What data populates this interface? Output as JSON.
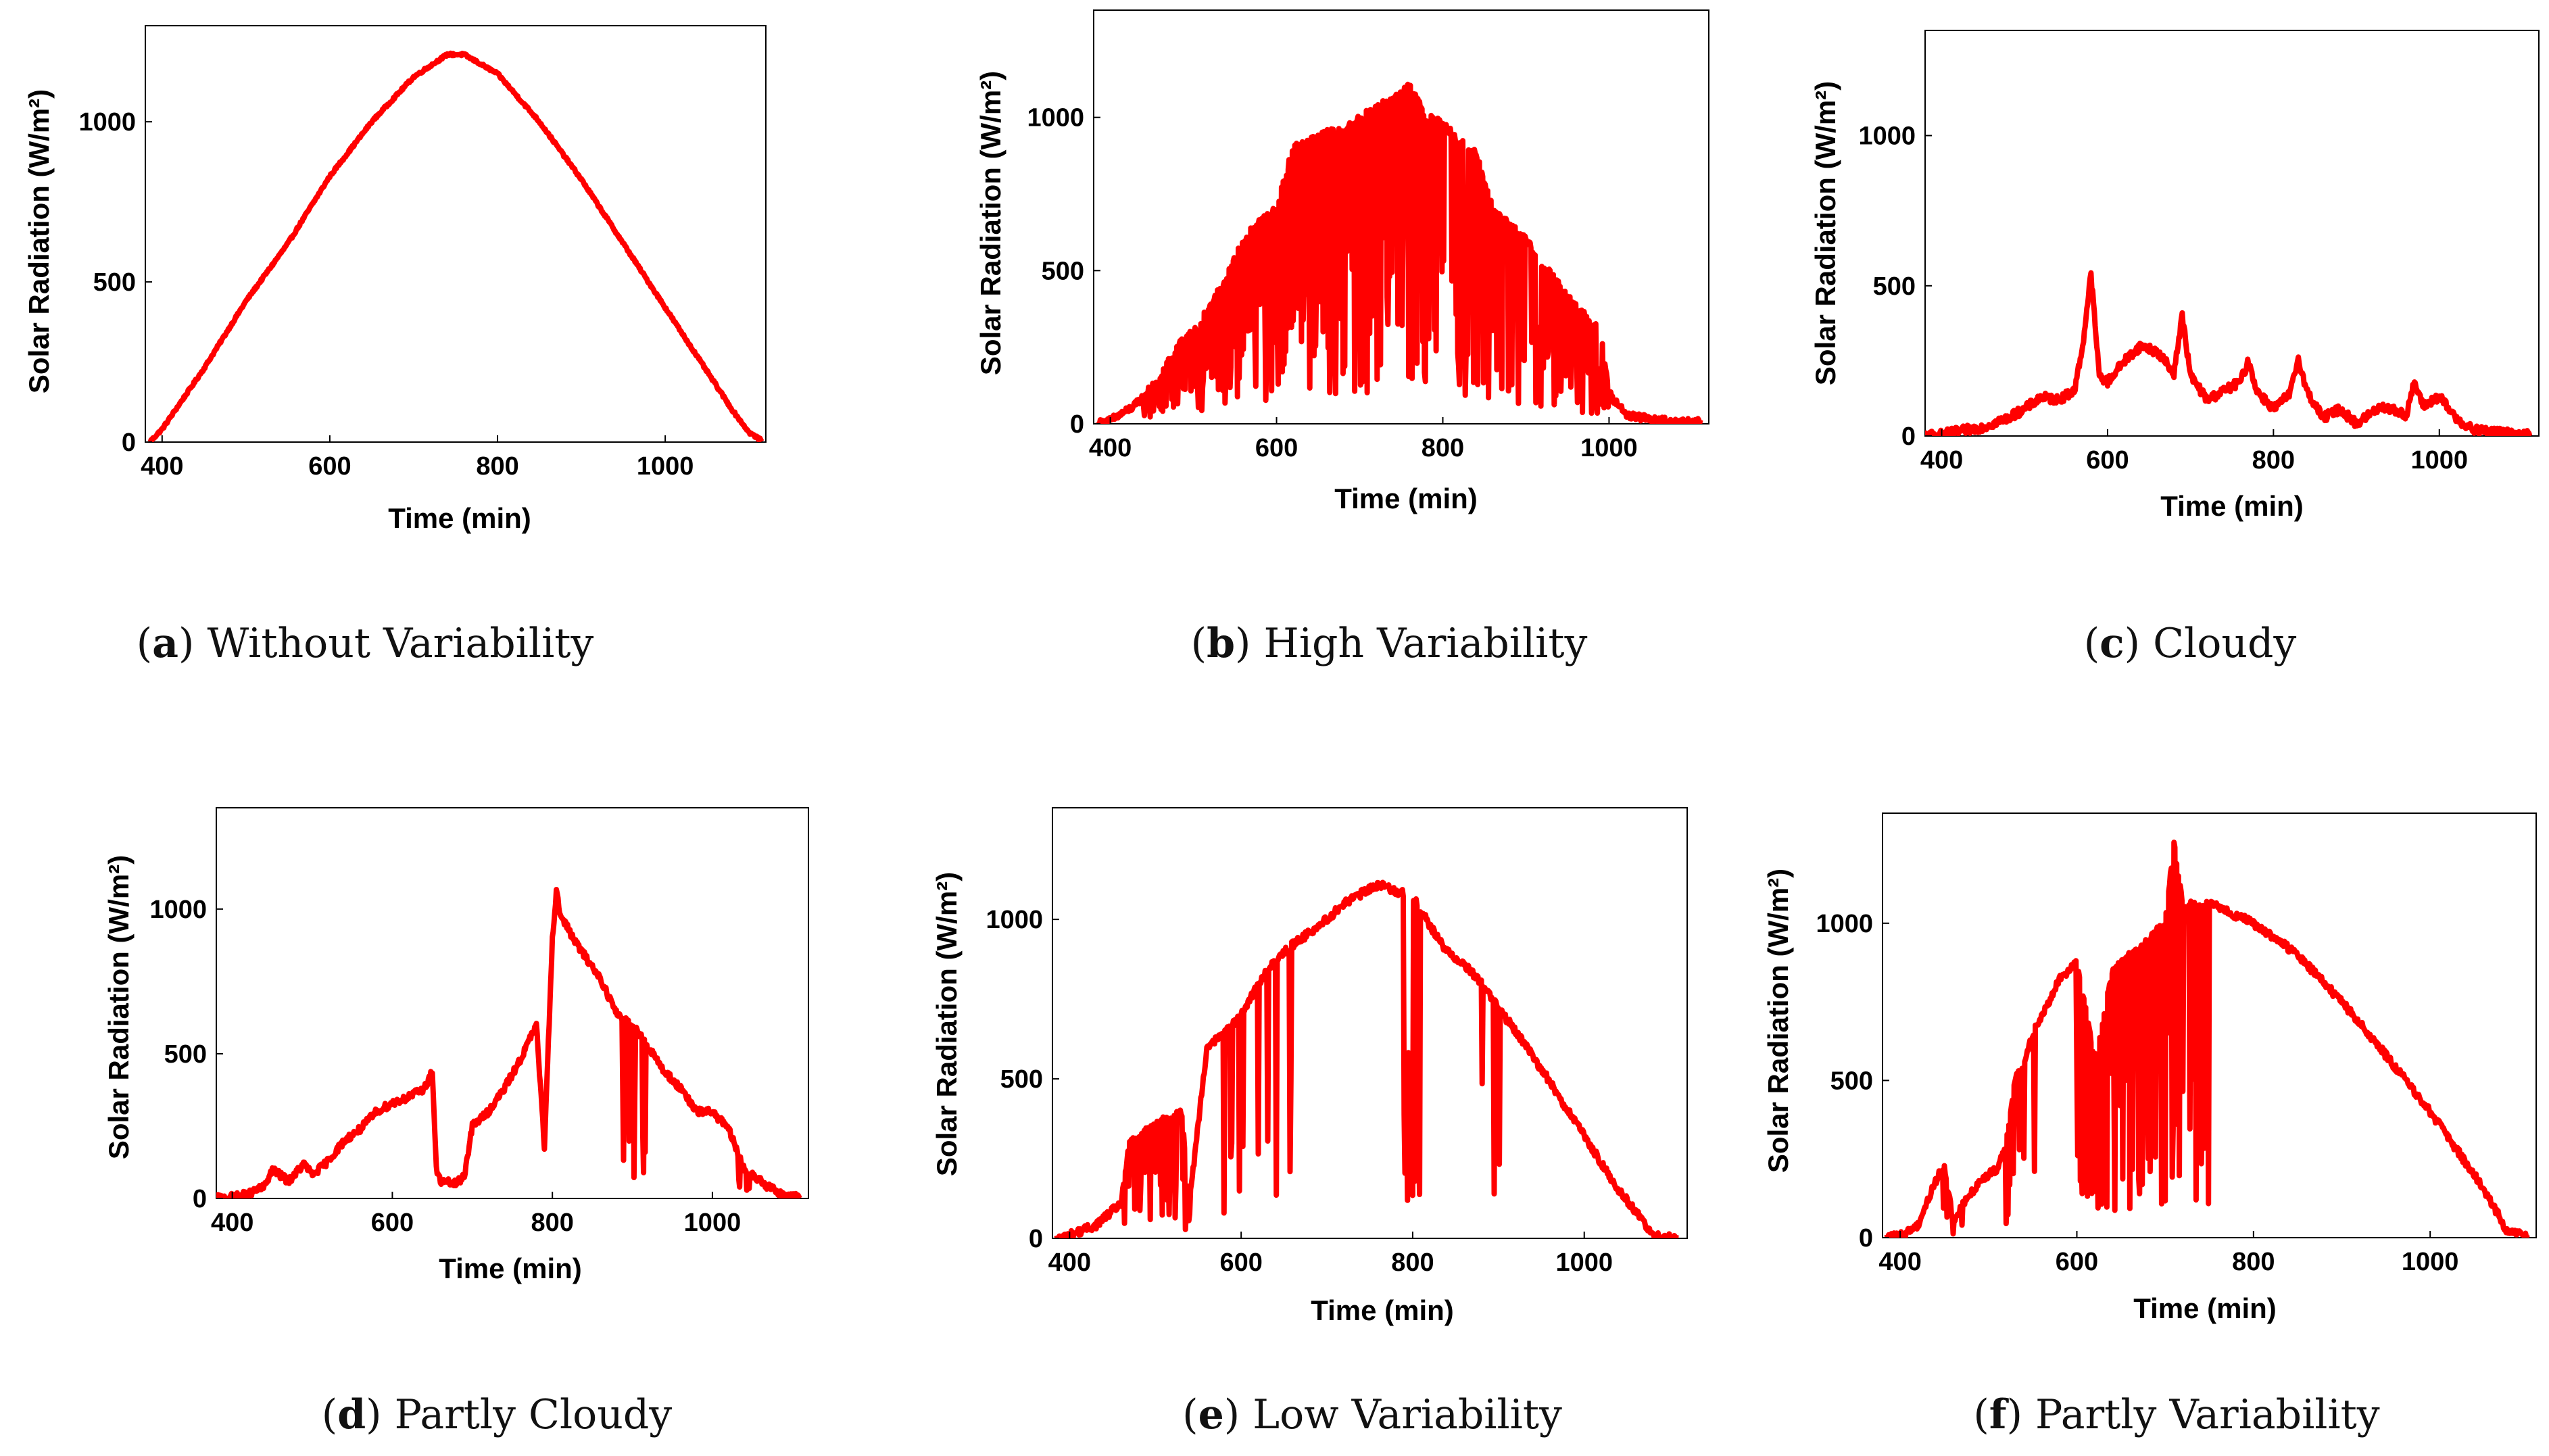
{
  "chart_data": [
    {
      "panel": "a",
      "caption": "Without Variability",
      "type": "line",
      "profile": "none",
      "xlabel": "Time (min)",
      "ylabel": "Solar Radiation (W/m²)",
      "xlim": [
        380,
        1120
      ],
      "ylim": [
        0,
        1300
      ],
      "xticks": [
        400,
        600,
        800,
        1000
      ],
      "yticks": [
        0,
        500,
        1000
      ],
      "series": [
        {
          "name": "Solar Radiation",
          "color": "#ff0000",
          "x": [
            385,
            400,
            450,
            500,
            550,
            600,
            650,
            700,
            740,
            760,
            800,
            850,
            900,
            950,
            1000,
            1050,
            1080,
            1100,
            1115
          ],
          "y": [
            0,
            40,
            230,
            440,
            620,
            830,
            1000,
            1140,
            1210,
            1210,
            1150,
            1000,
            820,
            620,
            420,
            220,
            100,
            30,
            5
          ]
        }
      ]
    },
    {
      "panel": "b",
      "caption": "High Variability",
      "type": "line",
      "profile": "high",
      "xlabel": "Time (min)",
      "ylabel": "Solar Radiation (W/m²)",
      "xlim": [
        380,
        1120
      ],
      "ylim": [
        0,
        1350
      ],
      "xticks": [
        400,
        600,
        800,
        1000
      ],
      "yticks": [
        0,
        500,
        1000
      ],
      "series": [
        {
          "name": "Solar Radiation",
          "color": "#ff0000",
          "x": [
            385,
            400,
            430,
            460,
            480,
            500,
            520,
            540,
            560,
            580,
            600,
            620,
            640,
            660,
            680,
            700,
            720,
            740,
            760,
            780,
            800,
            820,
            840,
            860,
            880,
            900,
            920,
            940,
            960,
            980,
            990,
            1000,
            1020,
            1050,
            1080,
            1110
          ],
          "y": [
            0,
            10,
            60,
            150,
            250,
            300,
            380,
            480,
            600,
            660,
            700,
            900,
            920,
            950,
            960,
            1000,
            1030,
            1060,
            1100,
            1000,
            980,
            920,
            880,
            700,
            650,
            600,
            520,
            450,
            380,
            330,
            300,
            100,
            30,
            15,
            5,
            5
          ]
        }
      ]
    },
    {
      "panel": "c",
      "caption": "Cloudy",
      "type": "line",
      "profile": "cloudy",
      "xlabel": "Time (min)",
      "ylabel": "Solar Radiation (W/m²)",
      "xlim": [
        380,
        1120
      ],
      "ylim": [
        0,
        1350
      ],
      "xticks": [
        400,
        600,
        800,
        1000
      ],
      "yticks": [
        0,
        500,
        1000
      ],
      "series": [
        {
          "name": "Solar Radiation",
          "color": "#ff0000",
          "x": [
            380,
            400,
            450,
            480,
            500,
            520,
            540,
            560,
            570,
            580,
            590,
            600,
            620,
            640,
            660,
            680,
            690,
            700,
            720,
            740,
            760,
            770,
            780,
            800,
            820,
            830,
            840,
            860,
            880,
            900,
            930,
            960,
            970,
            980,
            1000,
            1020,
            1040,
            1080,
            1110
          ],
          "y": [
            0,
            5,
            30,
            60,
            90,
            130,
            120,
            150,
            300,
            540,
            200,
            180,
            250,
            300,
            280,
            210,
            400,
            200,
            120,
            150,
            180,
            250,
            150,
            90,
            140,
            260,
            150,
            60,
            90,
            40,
            100,
            70,
            180,
            100,
            130,
            60,
            20,
            10,
            3
          ]
        }
      ]
    },
    {
      "panel": "d",
      "caption": "Partly Cloudy",
      "type": "line",
      "profile": "partly-cloudy",
      "xlabel": "Time (min)",
      "ylabel": "Solar Radiation (W/m²)",
      "xlim": [
        380,
        1120
      ],
      "ylim": [
        0,
        1350
      ],
      "xticks": [
        400,
        600,
        800,
        1000
      ],
      "yticks": [
        0,
        500,
        1000
      ],
      "series": [
        {
          "name": "Solar Radiation",
          "color": "#ff0000",
          "x": [
            380,
            400,
            420,
            440,
            450,
            470,
            490,
            500,
            520,
            540,
            560,
            580,
            600,
            620,
            640,
            650,
            655,
            660,
            680,
            690,
            700,
            720,
            740,
            760,
            780,
            790,
            800,
            805,
            810,
            830,
            860,
            880,
            900,
            920,
            940,
            960,
            980,
            1000,
            1020,
            1040,
            1050,
            1060,
            1070,
            1090,
            1110
          ],
          "y": [
            0,
            5,
            15,
            40,
            100,
            60,
            120,
            80,
            130,
            200,
            240,
            300,
            330,
            350,
            380,
            440,
            100,
            60,
            50,
            80,
            250,
            300,
            380,
            480,
            600,
            180,
            900,
            1060,
            980,
            880,
            760,
            640,
            600,
            520,
            440,
            380,
            300,
            300,
            240,
            100,
            80,
            60,
            40,
            10,
            3
          ]
        }
      ]
    },
    {
      "panel": "e",
      "caption": "Low Variability",
      "type": "line",
      "profile": "low",
      "xlabel": "Time (min)",
      "ylabel": "Solar Radiation (W/m²)",
      "xlim": [
        380,
        1120
      ],
      "ylim": [
        0,
        1350
      ],
      "xticks": [
        400,
        600,
        800,
        1000
      ],
      "yticks": [
        0,
        500,
        1000
      ],
      "series": [
        {
          "name": "Solar Radiation",
          "color": "#ff0000",
          "x": [
            385,
            400,
            430,
            460,
            470,
            490,
            510,
            530,
            540,
            560,
            580,
            600,
            620,
            640,
            660,
            680,
            700,
            720,
            740,
            760,
            780,
            800,
            820,
            840,
            860,
            880,
            900,
            920,
            960,
            1000,
            1040,
            1065,
            1080,
            1110
          ],
          "y": [
            0,
            10,
            40,
            110,
            300,
            340,
            370,
            400,
            120,
            600,
            640,
            700,
            800,
            870,
            920,
            960,
            1000,
            1050,
            1080,
            1110,
            1090,
            1070,
            980,
            900,
            860,
            800,
            720,
            650,
            490,
            320,
            150,
            70,
            5,
            3
          ]
        }
      ]
    },
    {
      "panel": "f",
      "caption": "Partly Variability",
      "type": "line",
      "profile": "partly",
      "xlabel": "Time (min)",
      "ylabel": "Solar Radiation (W/m²)",
      "xlim": [
        380,
        1120
      ],
      "ylim": [
        0,
        1350
      ],
      "xticks": [
        400,
        600,
        800,
        1000
      ],
      "yticks": [
        0,
        500,
        1000
      ],
      "series": [
        {
          "name": "Solar Radiation",
          "color": "#ff0000",
          "x": [
            385,
            400,
            420,
            440,
            450,
            460,
            470,
            490,
            510,
            520,
            530,
            540,
            550,
            560,
            580,
            600,
            620,
            640,
            660,
            680,
            700,
            710,
            720,
            740,
            760,
            800,
            850,
            900,
            950,
            1000,
            1050,
            1080,
            1085,
            1110
          ],
          "y": [
            0,
            5,
            40,
            180,
            230,
            50,
            100,
            180,
            220,
            300,
            500,
            550,
            650,
            700,
            820,
            880,
            560,
            850,
            900,
            950,
            1000,
            1250,
            1050,
            1070,
            1050,
            1000,
            900,
            750,
            580,
            400,
            200,
            60,
            20,
            3
          ]
        }
      ]
    }
  ]
}
